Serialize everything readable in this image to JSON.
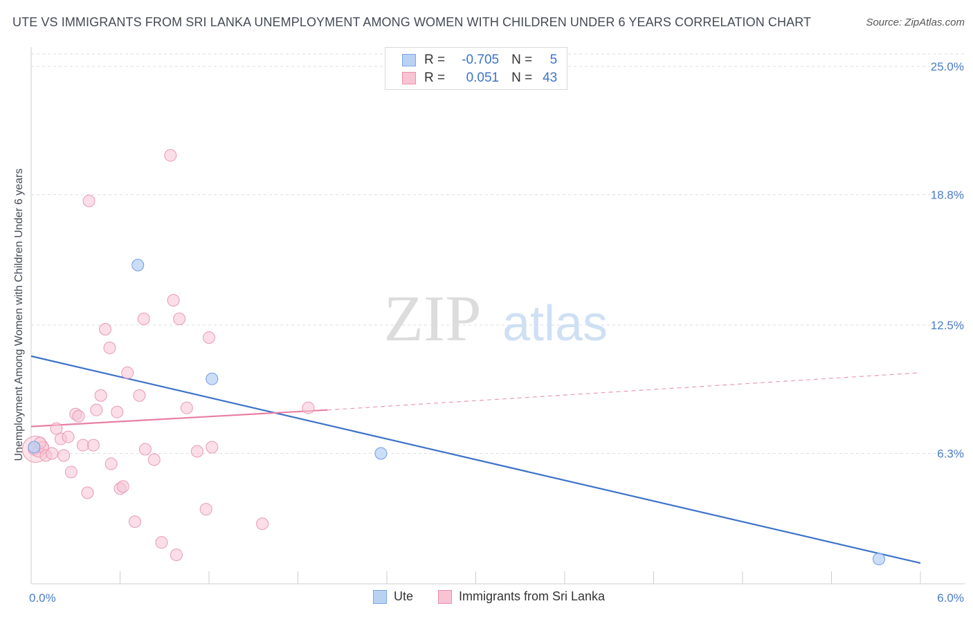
{
  "header": {
    "title": "UTE VS IMMIGRANTS FROM SRI LANKA UNEMPLOYMENT AMONG WOMEN WITH CHILDREN UNDER 6 YEARS CORRELATION CHART",
    "source": "Source: ZipAtlas.com"
  },
  "watermark": {
    "zip": "ZIP",
    "atlas": "atlas"
  },
  "legend": {
    "rows": [
      {
        "r_label": "R =",
        "r_value": "-0.705",
        "n_label": "N =",
        "n_value": "5"
      },
      {
        "r_label": "R =",
        "r_value": "0.051",
        "n_label": "N =",
        "n_value": "43"
      }
    ]
  },
  "chart_data": {
    "type": "scatter",
    "title": "UTE VS IMMIGRANTS FROM SRI LANKA UNEMPLOYMENT AMONG WOMEN WITH CHILDREN UNDER 6 YEARS CORRELATION CHART",
    "ylabel": "Unemployment Among Women with Children Under 6 years",
    "xlabel": "",
    "xlim": [
      0,
      6.0
    ],
    "ylim": [
      0,
      25.0
    ],
    "x_tick_labels": [
      "0.0%",
      "6.0%"
    ],
    "y_tick_labels": [
      "25.0%",
      "18.8%",
      "12.5%",
      "6.3%"
    ],
    "y_ticks": [
      25.0,
      18.8,
      12.5,
      6.3
    ],
    "grid": "horizontal dashed",
    "legend_position": "bottom",
    "colors": {
      "ute": "#3d72c9",
      "sri_lanka": "#e77fa2"
    },
    "series": [
      {
        "name": "Ute",
        "r": -0.705,
        "n": 5,
        "points": [
          {
            "x": 0.02,
            "y": 6.6
          },
          {
            "x": 0.72,
            "y": 15.4
          },
          {
            "x": 1.22,
            "y": 9.9
          },
          {
            "x": 2.36,
            "y": 6.3
          },
          {
            "x": 5.72,
            "y": 1.2
          }
        ],
        "trend": {
          "x": [
            0.0,
            6.0
          ],
          "y": [
            11.0,
            1.0
          ]
        }
      },
      {
        "name": "Immigrants from Sri Lanka",
        "r": 0.051,
        "n": 43,
        "points": [
          {
            "x": 0.02,
            "y": 6.5
          },
          {
            "x": 0.05,
            "y": 6.4
          },
          {
            "x": 0.08,
            "y": 6.6
          },
          {
            "x": 0.1,
            "y": 6.2
          },
          {
            "x": 0.14,
            "y": 6.3
          },
          {
            "x": 0.17,
            "y": 7.5
          },
          {
            "x": 0.2,
            "y": 7.0
          },
          {
            "x": 0.22,
            "y": 6.2
          },
          {
            "x": 0.25,
            "y": 7.1
          },
          {
            "x": 0.27,
            "y": 5.4
          },
          {
            "x": 0.3,
            "y": 8.2
          },
          {
            "x": 0.32,
            "y": 8.1
          },
          {
            "x": 0.35,
            "y": 6.7
          },
          {
            "x": 0.38,
            "y": 4.4
          },
          {
            "x": 0.39,
            "y": 18.5
          },
          {
            "x": 0.42,
            "y": 6.7
          },
          {
            "x": 0.44,
            "y": 8.4
          },
          {
            "x": 0.47,
            "y": 9.1
          },
          {
            "x": 0.5,
            "y": 12.3
          },
          {
            "x": 0.53,
            "y": 11.4
          },
          {
            "x": 0.54,
            "y": 5.8
          },
          {
            "x": 0.58,
            "y": 8.3
          },
          {
            "x": 0.6,
            "y": 4.6
          },
          {
            "x": 0.62,
            "y": 4.7
          },
          {
            "x": 0.65,
            "y": 10.2
          },
          {
            "x": 0.7,
            "y": 3.0
          },
          {
            "x": 0.73,
            "y": 9.1
          },
          {
            "x": 0.76,
            "y": 12.8
          },
          {
            "x": 0.77,
            "y": 6.5
          },
          {
            "x": 0.83,
            "y": 6.0
          },
          {
            "x": 0.88,
            "y": 2.0
          },
          {
            "x": 0.94,
            "y": 20.7
          },
          {
            "x": 0.96,
            "y": 13.7
          },
          {
            "x": 0.98,
            "y": 1.4
          },
          {
            "x": 1.0,
            "y": 12.8
          },
          {
            "x": 1.05,
            "y": 8.5
          },
          {
            "x": 1.12,
            "y": 6.4
          },
          {
            "x": 1.18,
            "y": 3.6
          },
          {
            "x": 1.2,
            "y": 11.9
          },
          {
            "x": 1.22,
            "y": 6.6
          },
          {
            "x": 1.56,
            "y": 2.9
          },
          {
            "x": 1.87,
            "y": 8.5
          },
          {
            "x": 0.06,
            "y": 6.8
          }
        ],
        "trend": {
          "x": [
            0.0,
            2.0
          ],
          "y": [
            7.6,
            8.4
          ]
        },
        "trend_extension": {
          "x": [
            2.0,
            6.0
          ],
          "y": [
            8.4,
            10.2
          ]
        }
      }
    ]
  },
  "bottom_legend": {
    "items": [
      {
        "label": "Ute"
      },
      {
        "label": "Immigrants from Sri Lanka"
      }
    ]
  }
}
